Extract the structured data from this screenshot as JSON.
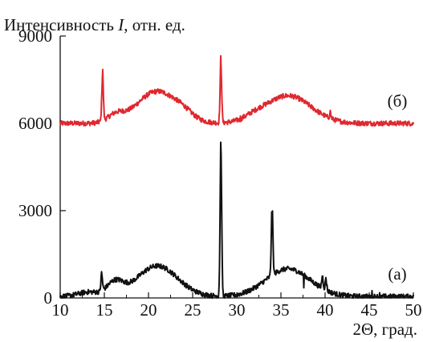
{
  "chart_data": {
    "type": "line",
    "ylabel_prefix": "Интенсивность ",
    "ylabel_var": "I",
    "ylabel_suffix": ", отн. ед.",
    "xlabel": "2Θ, град.",
    "xlim": [
      10,
      50
    ],
    "ylim": [
      0,
      9000
    ],
    "xticks": [
      "10",
      "15",
      "20",
      "25",
      "30",
      "35",
      "40",
      "45",
      "50"
    ],
    "yticks": [
      "0",
      "3000",
      "6000",
      "9000"
    ],
    "grid": false,
    "legend": "none",
    "series": [
      {
        "name": "(б)",
        "color": "#e0282f",
        "baseline": 6000,
        "humps": [
          {
            "center": 16.3,
            "width": 0.9,
            "height": 250
          },
          {
            "center": 21.0,
            "width": 2.3,
            "height": 1100
          },
          {
            "center": 24.0,
            "width": 1.0,
            "height": 150
          },
          {
            "center": 35.8,
            "width": 2.6,
            "height": 950
          },
          {
            "center": 32.0,
            "width": 1.2,
            "height": 120
          }
        ],
        "peaks": [
          {
            "x": 14.8,
            "y": 7850
          },
          {
            "x": 28.2,
            "y": 8320
          },
          {
            "x": 40.6,
            "y": 6450
          },
          {
            "x": 30.4,
            "y": 6250
          },
          {
            "x": 31.0,
            "y": 6200
          }
        ]
      },
      {
        "name": "(а)",
        "color": "#111111",
        "baseline": 50,
        "humps": [
          {
            "center": 16.2,
            "width": 0.9,
            "height": 450
          },
          {
            "center": 21.0,
            "width": 2.3,
            "height": 1050
          },
          {
            "center": 13.2,
            "width": 1.2,
            "height": 150
          },
          {
            "center": 35.8,
            "width": 2.5,
            "height": 950
          }
        ],
        "peaks": [
          {
            "x": 14.7,
            "y": 900
          },
          {
            "x": 28.2,
            "y": 5350
          },
          {
            "x": 34.0,
            "y": 2750
          },
          {
            "x": 39.7,
            "y": 750
          },
          {
            "x": 40.1,
            "y": 700
          },
          {
            "x": 45.3,
            "y": 250
          },
          {
            "x": 46.2,
            "y": 180
          },
          {
            "x": 37.6,
            "y": 350
          }
        ]
      }
    ]
  }
}
